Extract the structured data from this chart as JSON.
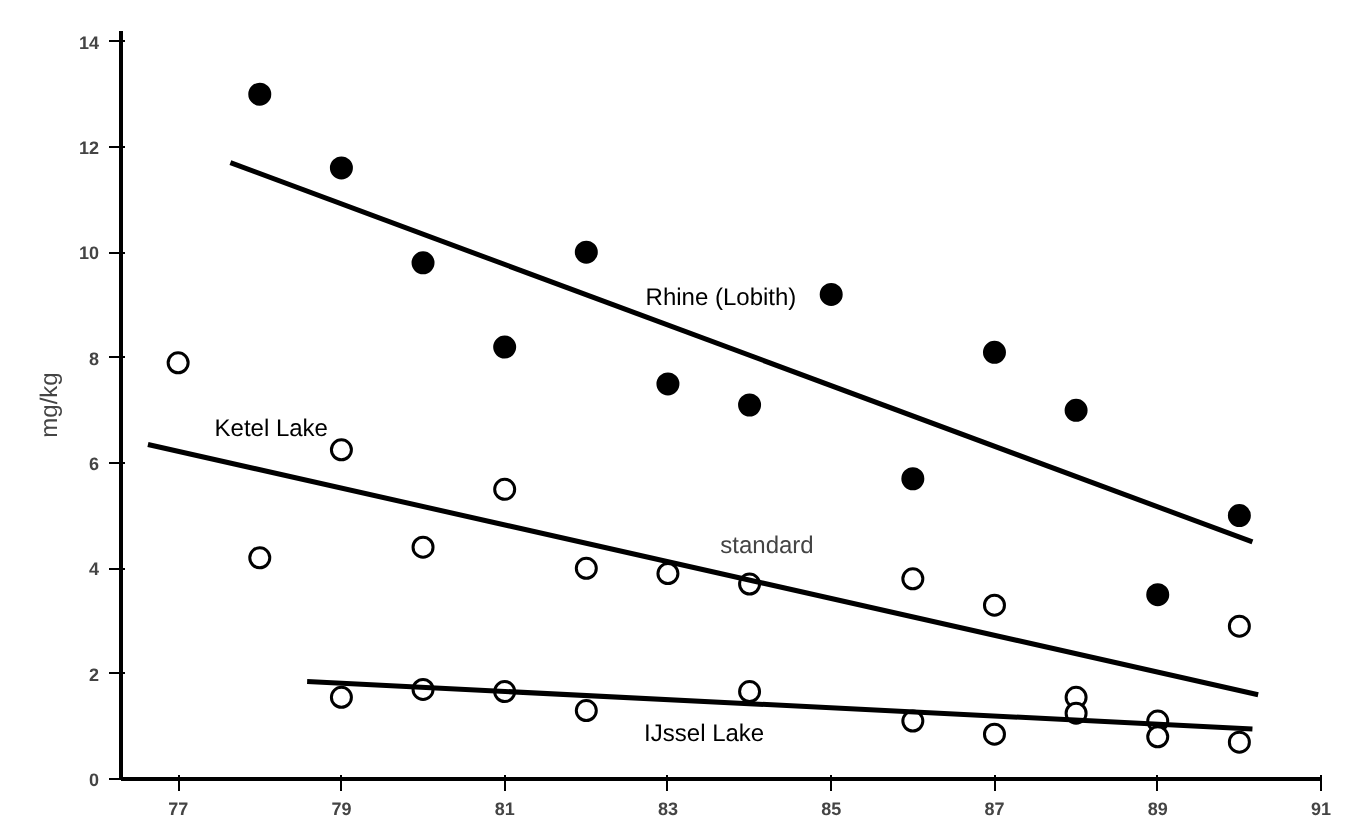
{
  "chart_data": {
    "type": "scatter",
    "ylabel": "mg/kg",
    "xlim": [
      76.3,
      91
    ],
    "ylim": [
      0,
      14.2
    ],
    "xticks": [
      77,
      79,
      81,
      83,
      85,
      87,
      89,
      91
    ],
    "yticks": [
      0,
      2,
      4,
      6,
      8,
      10,
      12,
      14
    ],
    "grid": false,
    "marker": "circle",
    "series": [
      {
        "color": "#000000",
        "x": [
          78,
          79,
          80,
          81,
          82,
          83,
          84,
          85,
          86,
          87,
          88,
          89,
          90
        ],
        "values": [
          13.0,
          11.6,
          9.8,
          8.2,
          10.0,
          7.5,
          7.1,
          9.2,
          5.7,
          8.1,
          7.0,
          3.5,
          5.0
        ]
      },
      {
        "color": "#000000",
        "x": [
          77,
          78,
          79,
          80,
          81,
          82,
          83,
          84,
          86,
          87,
          90
        ],
        "values": [
          7.9,
          4.2,
          6.25,
          4.4,
          5.5,
          4.0,
          3.9,
          3.7,
          3.8,
          3.3,
          2.9
        ]
      },
      {
        "color": "#000000",
        "x": [
          79,
          80,
          81,
          82,
          84,
          86,
          87,
          88,
          88,
          89,
          89,
          90
        ],
        "values": [
          1.55,
          1.7,
          1.66,
          1.3,
          1.66,
          1.1,
          0.85,
          1.55,
          1.25,
          1.1,
          0.8,
          0.7
        ]
      },
      {
        "type": "line",
        "marker": "none",
        "name": "Rhine (Lobith)",
        "color": "#000000",
        "x": [
          77.64,
          90.16
        ],
        "values": [
          11.7,
          4.5
        ]
      },
      {
        "type": "line",
        "marker": "none",
        "name": "Ketel Lake",
        "color": "#000000",
        "x": [
          76.63,
          90.23
        ],
        "values": [
          6.35,
          1.6
        ]
      },
      {
        "type": "line",
        "marker": "none",
        "name": "IJssel Lake",
        "color": "#000000",
        "x": [
          78.58,
          90.16
        ],
        "values": [
          1.85,
          0.95
        ]
      }
    ],
    "annotations": [
      "standard"
    ]
  }
}
